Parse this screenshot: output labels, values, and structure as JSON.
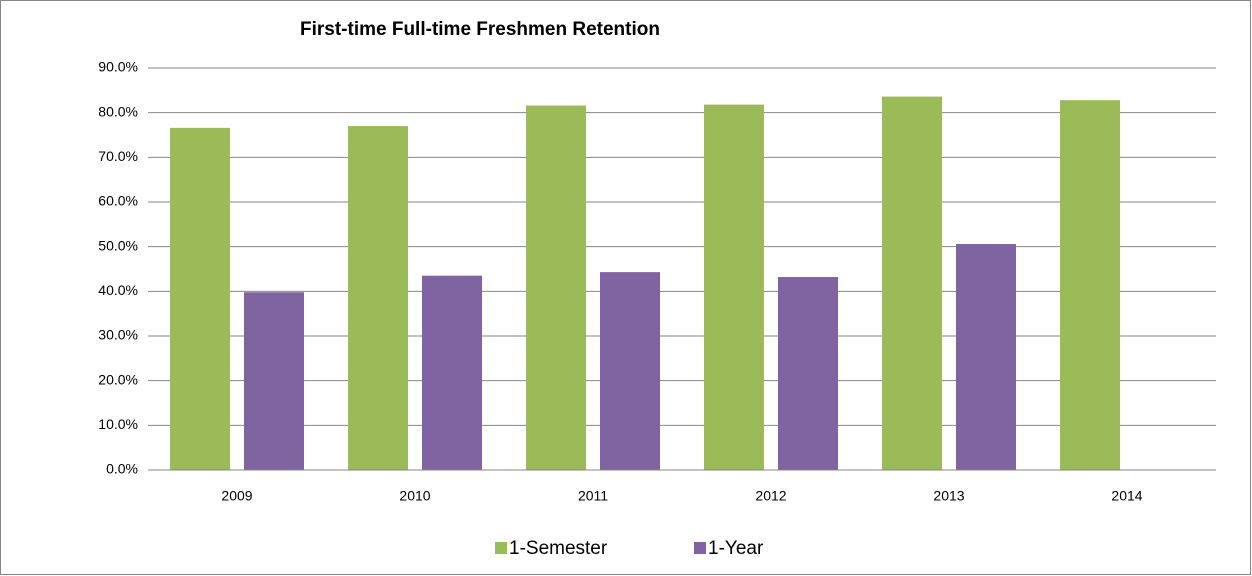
{
  "chart_data": {
    "type": "bar",
    "title": "First-time Full-time Freshmen Retention",
    "categories": [
      "2009",
      "2010",
      "2011",
      "2012",
      "2013",
      "2014"
    ],
    "series": [
      {
        "name": "1-Semester",
        "color": "#9bbb59",
        "values": [
          76.6,
          77.0,
          81.6,
          81.8,
          83.6,
          82.8
        ]
      },
      {
        "name": "1-Year",
        "color": "#8064a2",
        "values": [
          39.8,
          43.5,
          44.3,
          43.2,
          50.6,
          null
        ]
      }
    ],
    "ylim": [
      0,
      90
    ],
    "yticks": [
      {
        "value": 0,
        "label": "0.0%"
      },
      {
        "value": 10,
        "label": "10.0%"
      },
      {
        "value": 20,
        "label": "20.0%"
      },
      {
        "value": 30,
        "label": "30.0%"
      },
      {
        "value": 40,
        "label": "40.0%"
      },
      {
        "value": 50,
        "label": "50.0%"
      },
      {
        "value": 60,
        "label": "60.0%"
      },
      {
        "value": 70,
        "label": "70.0%"
      },
      {
        "value": 80,
        "label": "80.0%"
      },
      {
        "value": 90,
        "label": "90.0%"
      }
    ],
    "grid": true,
    "legend": "bottom"
  }
}
